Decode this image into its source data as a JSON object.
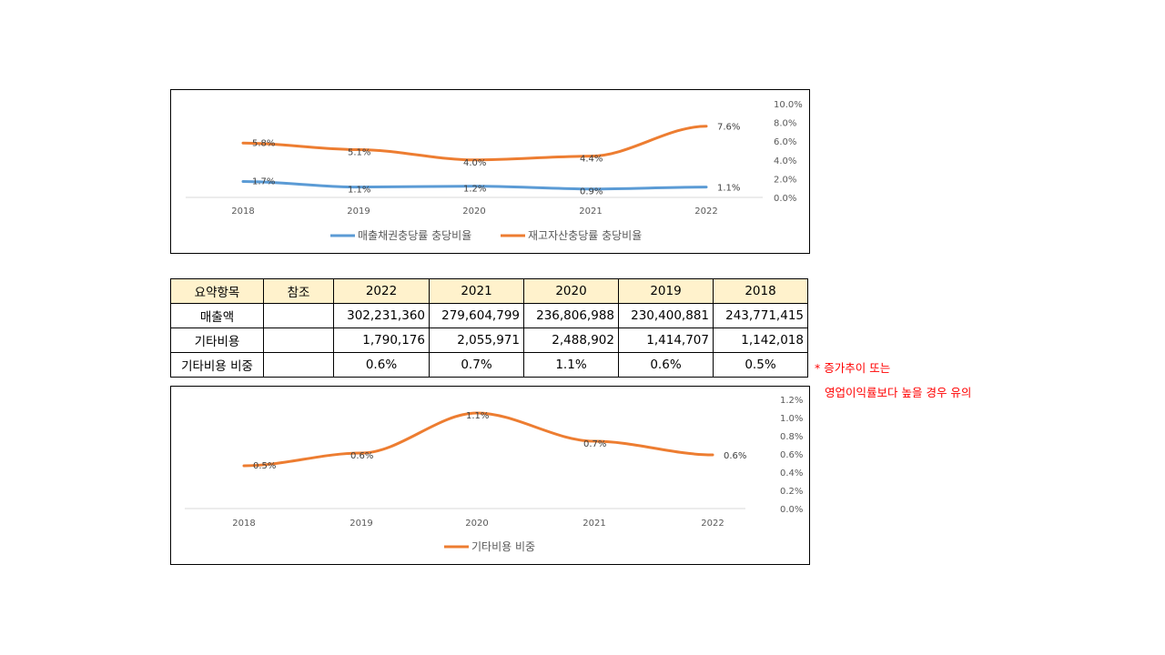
{
  "chart_data": [
    {
      "type": "line",
      "categories": [
        "2018",
        "2019",
        "2020",
        "2021",
        "2022"
      ],
      "ylim": [
        0,
        0.1
      ],
      "yticks": [
        "0.0%",
        "2.0%",
        "4.0%",
        "6.0%",
        "8.0%",
        "10.0%"
      ],
      "grid": false,
      "legend": "bottom",
      "series": [
        {
          "name": "매출채권충당률 충당비율",
          "values": [
            0.017,
            0.011,
            0.012,
            0.009,
            0.011
          ],
          "labels": [
            "1.7%",
            "1.1%",
            "1.2%",
            "0.9%",
            "1.1%"
          ],
          "color": "#5b9bd5"
        },
        {
          "name": "재고자산충당률 충당비율",
          "values": [
            0.058,
            0.051,
            0.04,
            0.044,
            0.076
          ],
          "labels": [
            "5.8%",
            "5.1%",
            "4.0%",
            "4.4%",
            "7.6%"
          ],
          "color": "#ed7d31"
        }
      ]
    },
    {
      "type": "line",
      "categories": [
        "2018",
        "2019",
        "2020",
        "2021",
        "2022"
      ],
      "ylim": [
        0,
        0.012
      ],
      "yticks": [
        "0.0%",
        "0.2%",
        "0.4%",
        "0.6%",
        "0.8%",
        "1.0%",
        "1.2%"
      ],
      "grid": false,
      "legend": "bottom",
      "series": [
        {
          "name": "기타비용 비중",
          "values": [
            0.0047,
            0.0061,
            0.0105,
            0.0074,
            0.0059
          ],
          "labels": [
            "0.5%",
            "0.6%",
            "1.1%",
            "0.7%",
            "0.6%"
          ],
          "color": "#ed7d31"
        }
      ]
    }
  ],
  "table": {
    "headers": [
      "요약항목",
      "참조",
      "2022",
      "2021",
      "2020",
      "2019",
      "2018"
    ],
    "rows": [
      {
        "label": "매출액",
        "ref": "",
        "values": [
          "302,231,360",
          "279,604,799",
          "236,806,988",
          "230,400,881",
          "243,771,415"
        ]
      },
      {
        "label": "기타비용",
        "ref": "",
        "values": [
          "1,790,176",
          "2,055,971",
          "2,488,902",
          "1,414,707",
          "1,142,018"
        ]
      },
      {
        "label": "기타비용 비중",
        "ref": "",
        "values": [
          "0.6%",
          "0.7%",
          "1.1%",
          "0.6%",
          "0.5%"
        ]
      }
    ],
    "header_bg": "#fff2cc"
  },
  "note": {
    "line1": "* 증가추이 또는",
    "line2": "영업이익률보다 높을 경우 유의",
    "color": "#ff0000"
  }
}
